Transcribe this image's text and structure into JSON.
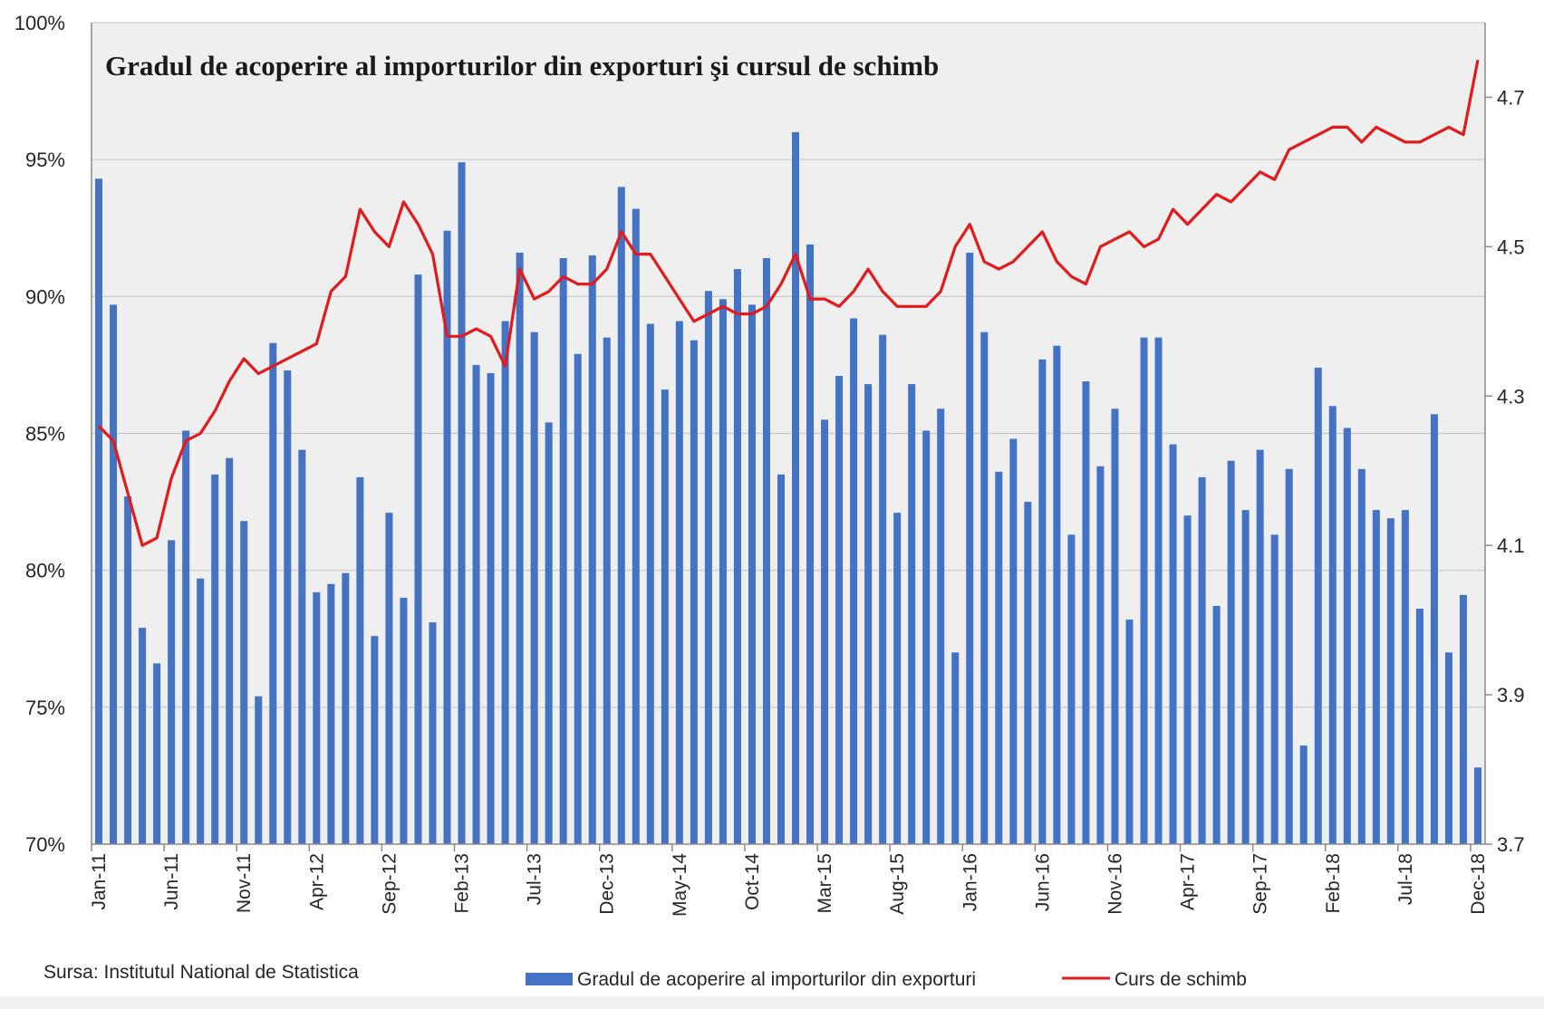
{
  "chart_data": {
    "type": "bar",
    "title": "Gradul de acoperire al importurilor din exporturi şi cursul de schimb",
    "source": "Sursa: Institutul National de Statistica",
    "y_left": {
      "range": [
        70,
        100
      ],
      "ticks": [
        "70%",
        "75%",
        "80%",
        "85%",
        "90%",
        "95%",
        "100%"
      ]
    },
    "y_right": {
      "range": [
        3.7,
        4.8
      ],
      "ticks": [
        "3.7",
        "3.9",
        "4.1",
        "4.3",
        "4.5",
        "4.7"
      ]
    },
    "x_tick_labels": [
      "Jan-11",
      "Jun-11",
      "Nov-11",
      "Apr-12",
      "Sep-12",
      "Feb-13",
      "Jul-13",
      "Dec-13",
      "May-14",
      "Oct-14",
      "Mar-15",
      "Aug-15",
      "Jan-16",
      "Jun-16",
      "Nov-16",
      "Apr-17",
      "Sep-17",
      "Feb-18",
      "Jul-18",
      "Dec-18"
    ],
    "x_tick_every": 5,
    "months_start": "Jan-11",
    "months_count": 96,
    "grid": "horizontal",
    "legend_position": "bottom",
    "series": [
      {
        "name": "Gradul de acoperire al importurilor din exporturi",
        "type": "bar",
        "axis": "left",
        "color": "#4472c4",
        "values": [
          94.3,
          89.7,
          82.7,
          77.9,
          76.6,
          81.1,
          85.1,
          79.7,
          83.5,
          84.1,
          81.8,
          75.4,
          88.3,
          87.3,
          84.4,
          79.2,
          79.5,
          79.9,
          83.4,
          77.6,
          82.1,
          79.0,
          90.8,
          78.1,
          92.4,
          94.9,
          87.5,
          87.2,
          89.1,
          91.6,
          88.7,
          85.4,
          91.4,
          87.9,
          91.5,
          88.5,
          94.0,
          93.2,
          89.0,
          86.6,
          89.1,
          88.4,
          90.2,
          89.9,
          91.0,
          89.7,
          91.4,
          83.5,
          96.0,
          91.9,
          85.5,
          87.1,
          89.2,
          86.8,
          88.6,
          82.1,
          86.8,
          85.1,
          85.9,
          77.0,
          91.6,
          88.7,
          83.6,
          84.8,
          82.5,
          87.7,
          88.2,
          81.3,
          86.9,
          83.8,
          85.9,
          78.2,
          88.5,
          88.5,
          84.6,
          82.0,
          83.4,
          78.7,
          84.0,
          82.2,
          84.4,
          81.3,
          83.7,
          73.6,
          87.4,
          86.0,
          85.2,
          83.7,
          82.2,
          81.9,
          82.2,
          78.6,
          85.7,
          77.0,
          79.1,
          72.8
        ]
      },
      {
        "name": "Curs de schimb",
        "type": "line",
        "axis": "right",
        "color": "#e31a1c",
        "values": [
          4.26,
          4.24,
          4.17,
          4.1,
          4.11,
          4.19,
          4.24,
          4.25,
          4.28,
          4.32,
          4.35,
          4.33,
          4.34,
          4.35,
          4.36,
          4.37,
          4.44,
          4.46,
          4.55,
          4.52,
          4.5,
          4.56,
          4.53,
          4.49,
          4.38,
          4.38,
          4.39,
          4.38,
          4.34,
          4.47,
          4.43,
          4.44,
          4.46,
          4.45,
          4.45,
          4.47,
          4.52,
          4.49,
          4.49,
          4.46,
          4.43,
          4.4,
          4.41,
          4.42,
          4.41,
          4.41,
          4.42,
          4.45,
          4.49,
          4.43,
          4.43,
          4.42,
          4.44,
          4.47,
          4.44,
          4.42,
          4.42,
          4.42,
          4.44,
          4.5,
          4.53,
          4.48,
          4.47,
          4.48,
          4.5,
          4.52,
          4.48,
          4.46,
          4.45,
          4.5,
          4.51,
          4.52,
          4.5,
          4.51,
          4.55,
          4.53,
          4.55,
          4.57,
          4.56,
          4.58,
          4.6,
          4.59,
          4.63,
          4.64,
          4.65,
          4.66,
          4.66,
          4.64,
          4.66,
          4.65,
          4.64,
          4.64,
          4.65,
          4.66,
          4.65,
          4.75
        ]
      }
    ]
  }
}
